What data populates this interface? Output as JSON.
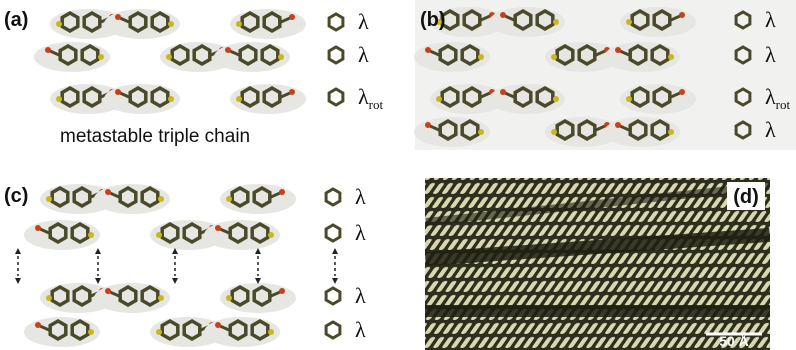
{
  "panels": [
    {
      "label": "(a)",
      "rows": [
        {
          "label": "λ"
        },
        {
          "label": "λ"
        },
        {
          "label": "λ",
          "subscript": "rot"
        }
      ],
      "caption": "metastable triple chain"
    },
    {
      "label": "(b)",
      "rows": [
        {
          "label": "λ"
        },
        {
          "label": "λ"
        },
        {
          "label": "λ",
          "subscript": "rot"
        },
        {
          "label": "λ"
        }
      ]
    },
    {
      "label": "(c)",
      "rows": [
        {
          "label": "λ"
        },
        {
          "label": "λ"
        },
        {
          "label": "λ"
        },
        {
          "label": "λ"
        }
      ]
    },
    {
      "label": "(d)",
      "scale_bar": "50 Å"
    }
  ]
}
